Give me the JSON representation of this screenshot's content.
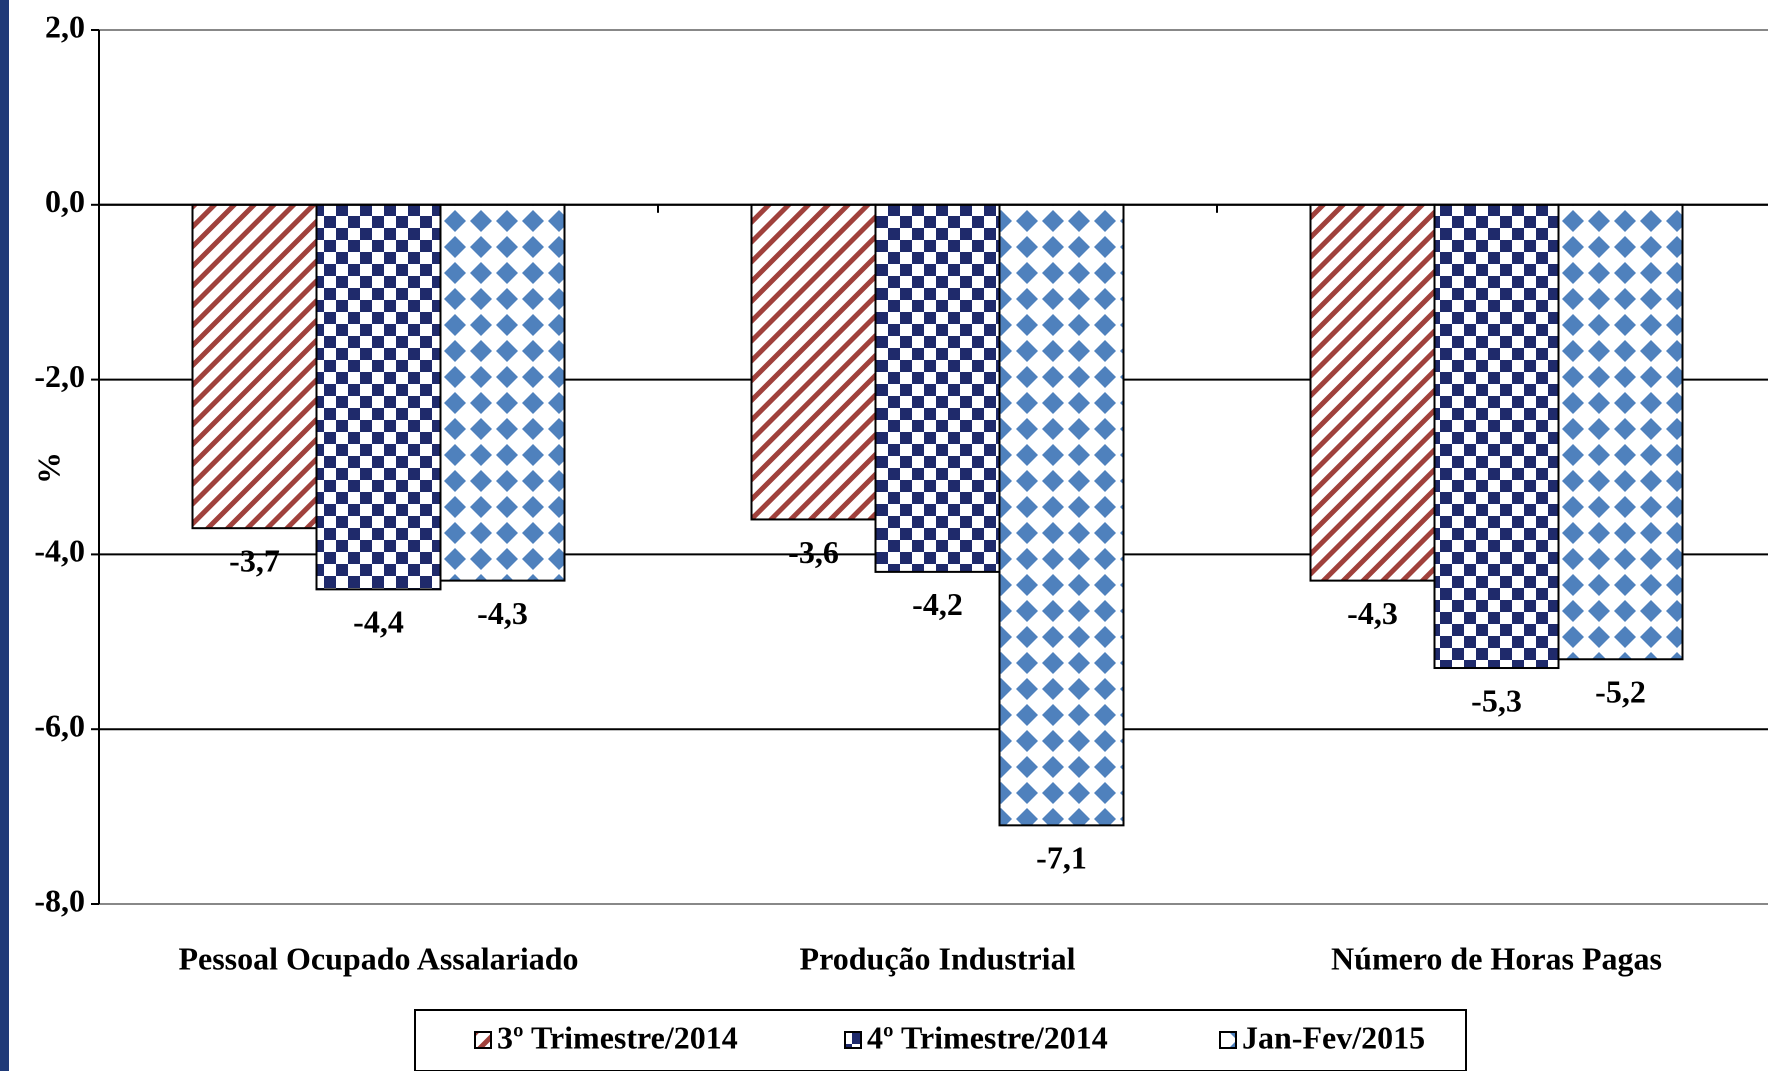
{
  "chart_data": {
    "type": "bar",
    "y_label": "%",
    "categories": [
      "Pessoal Ocupado Assalariado",
      "Produção Industrial",
      "Número de Horas Pagas"
    ],
    "series": [
      {
        "name": "3º Trimestre/2014",
        "color": "#a0413c",
        "values": [
          -3.7,
          -3.6,
          -4.3
        ],
        "value_labels": [
          "-3,7",
          "-3,6",
          "-4,3"
        ]
      },
      {
        "name": "4º Trimestre/2014",
        "color": "#1f2a6b",
        "values": [
          -4.4,
          -4.2,
          -5.3
        ],
        "value_labels": [
          "-4,4",
          "-4,2",
          "-5,3"
        ]
      },
      {
        "name": "Jan-Fev/2015",
        "color": "#4f81bd",
        "values": [
          -4.3,
          -7.1,
          -5.2
        ],
        "value_labels": [
          "-4,3",
          "-7,1",
          "-5,2"
        ]
      }
    ],
    "ylim": [
      -8,
      2
    ],
    "yticks": [
      {
        "value": -8,
        "label": "-8,0"
      },
      {
        "value": -6,
        "label": "-6,0"
      },
      {
        "value": -4,
        "label": "-4,0"
      },
      {
        "value": -2,
        "label": "-2,0"
      },
      {
        "value": 0,
        "label": "0,0"
      },
      {
        "value": 2,
        "label": "2,0"
      }
    ],
    "grid": true
  }
}
